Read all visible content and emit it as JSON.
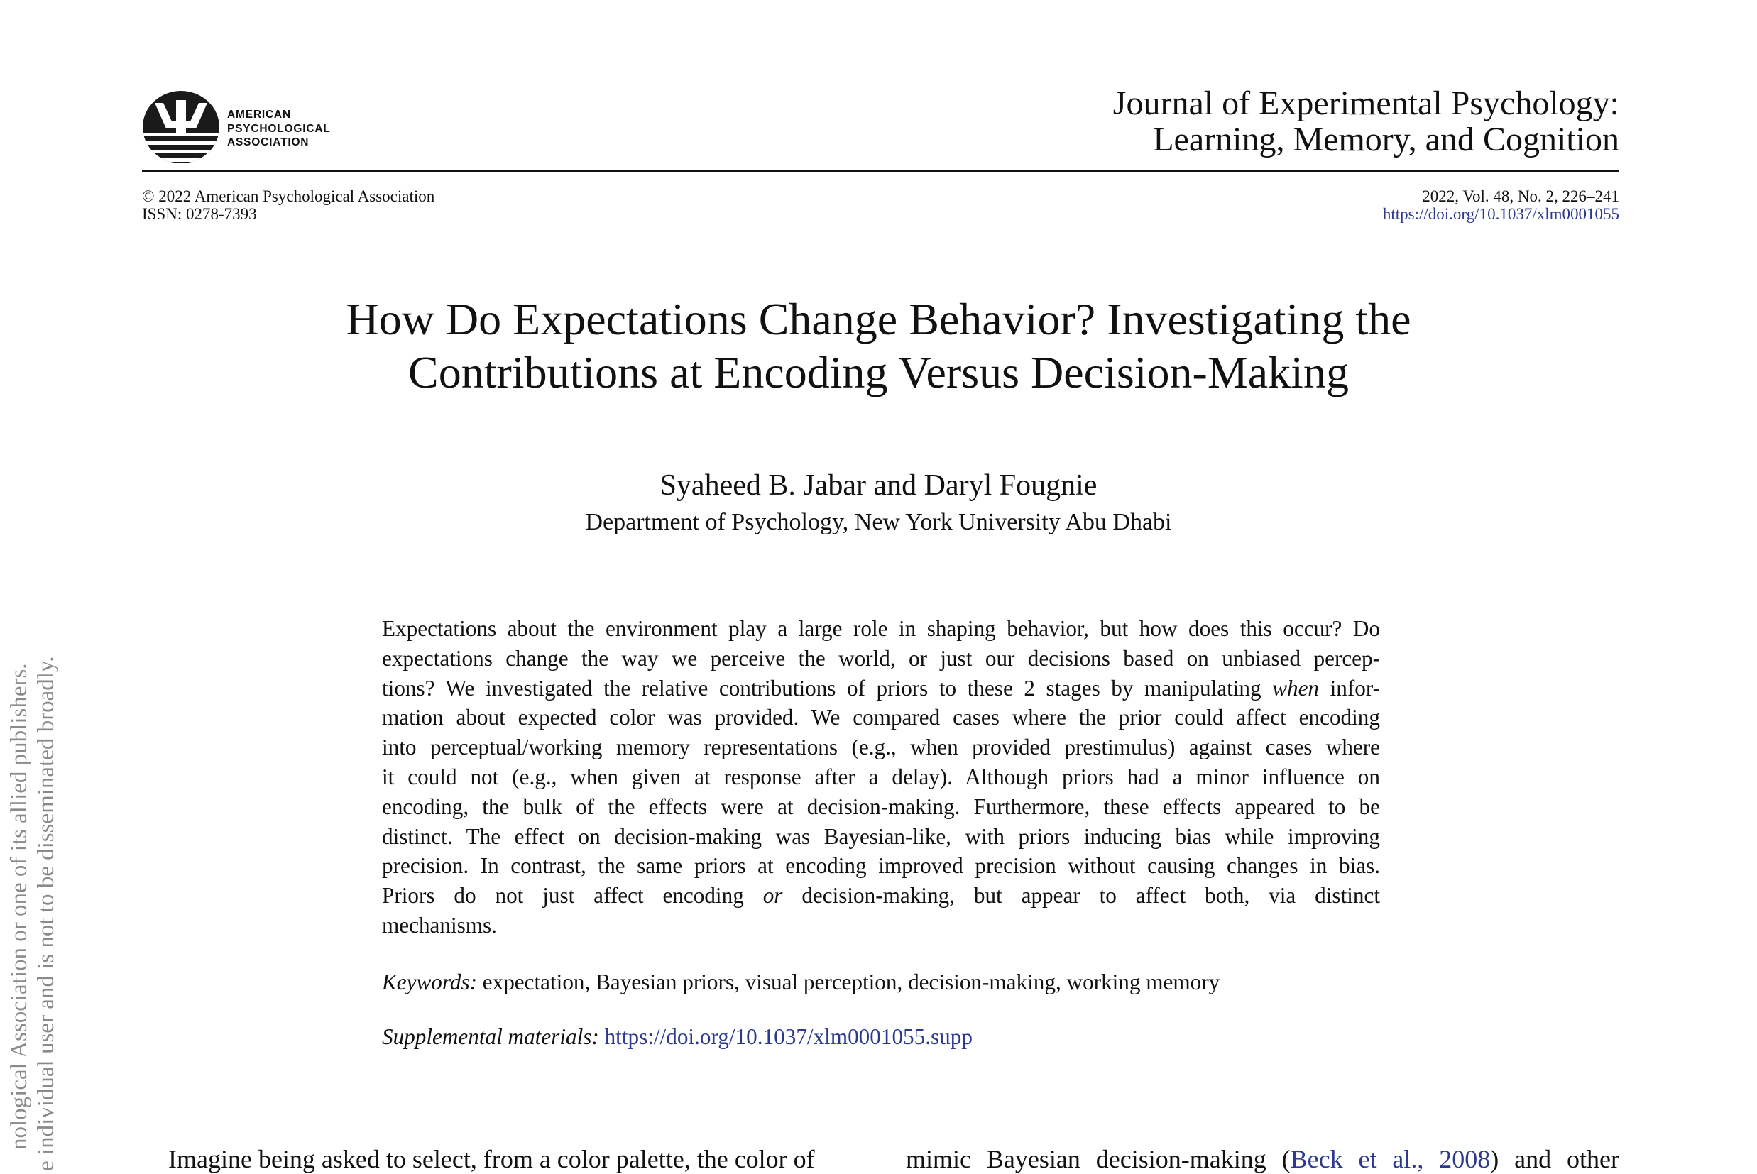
{
  "header": {
    "logo_icon": "apa-psi-logo-icon",
    "logo_lines": [
      "AMERICAN",
      "PSYCHOLOGICAL",
      "ASSOCIATION"
    ],
    "journal_lines": [
      "Journal of Experimental Psychology:",
      "Learning, Memory, and Cognition"
    ],
    "copyright": "© 2022 American Psychological Association",
    "issn": "ISSN: 0278-7393",
    "volume": "2022, Vol. 48, No. 2, 226–241",
    "doi": "https://doi.org/10.1037/xlm0001055"
  },
  "article": {
    "title_lines": [
      "How Do Expectations Change Behavior? Investigating the",
      "Contributions at Encoding Versus Decision-Making"
    ],
    "authors": "Syaheed B. Jabar and Daryl Fougnie",
    "affiliation": "Department of Psychology, New York University Abu Dhabi"
  },
  "abstract": {
    "l1": "Expectations about the environment play a large role in shaping behavior, but how does this occur? Do",
    "l2": "expectations change the way we perceive the world, or just our decisions based on unbiased percep-",
    "l3a": "tions? We investigated the relative contributions of priors to these 2 stages by manipulating ",
    "l3_em": "when",
    "l3b": " infor-",
    "l4": "mation about expected color was provided. We compared cases where the prior could affect encoding",
    "l5": "into perceptual/working memory representations (e.g., when provided prestimulus) against cases where",
    "l6": "it could not (e.g., when given at response after a delay). Although priors had a minor influence on",
    "l7": "encoding, the bulk of the effects were at decision-making. Furthermore, these effects appeared to be",
    "l8": "distinct. The effect on decision-making was Bayesian-like, with priors inducing bias while improving",
    "l9": "precision. In contrast, the same priors at encoding improved precision without causing changes in bias.",
    "l10a": "Priors do not just affect encoding ",
    "l10_em": "or",
    "l10b": " decision-making, but appear to affect both, via distinct",
    "l11": "mechanisms."
  },
  "keywords": {
    "label": "Keywords:",
    "text": " expectation, Bayesian priors, visual perception, decision-making, working memory"
  },
  "supplemental": {
    "label": "Supplemental materials:",
    "link": "https://doi.org/10.1037/xlm0001055.supp"
  },
  "body": {
    "col1_line": "Imagine being asked to select, from a color palette, the color of",
    "col2_pre": "mimic Bayesian decision-making (",
    "col2_cite": "Beck et al., 2008",
    "col2_post": ") and other"
  },
  "side_notice": {
    "line1": "nological Association or one of its allied publishers.",
    "line2": "e individual user and is not to be disseminated broadly."
  }
}
